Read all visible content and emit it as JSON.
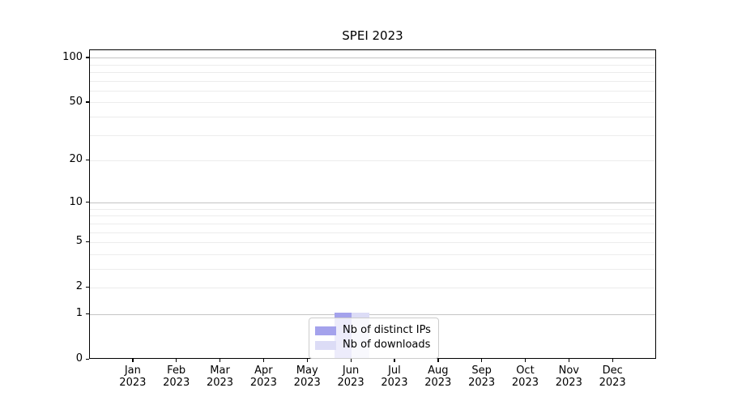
{
  "chart_data": {
    "type": "bar",
    "title": "SPEI 2023",
    "categories": [
      "Jan",
      "Feb",
      "Mar",
      "Apr",
      "May",
      "Jun",
      "Jul",
      "Aug",
      "Sep",
      "Oct",
      "Nov",
      "Dec"
    ],
    "year": "2023",
    "series": [
      {
        "name": "Nb of distinct IPs",
        "color": "#a4a2ec",
        "values": [
          0,
          0,
          0,
          0,
          0,
          1,
          0,
          0,
          0,
          0,
          0,
          0
        ]
      },
      {
        "name": "Nb of downloads",
        "color": "#dcdcf6",
        "values": [
          0,
          0,
          0,
          0,
          0,
          1,
          0,
          0,
          0,
          0,
          0,
          0
        ]
      }
    ],
    "yscale": "log1p",
    "ylim": [
      0,
      112
    ],
    "yticks": [
      0,
      1,
      2,
      5,
      10,
      20,
      50,
      100
    ],
    "major_gridlines": [
      1,
      10,
      100
    ],
    "minor_gridlines": [
      2,
      3,
      4,
      5,
      6,
      7,
      8,
      9,
      20,
      30,
      40,
      50,
      60,
      70,
      80,
      90
    ],
    "legend_position": "lower center",
    "grid": true,
    "colors": {
      "major_grid": "#c4c4c4",
      "minor_grid": "#ececec",
      "spine": "#000000",
      "background": "#ffffff"
    }
  }
}
